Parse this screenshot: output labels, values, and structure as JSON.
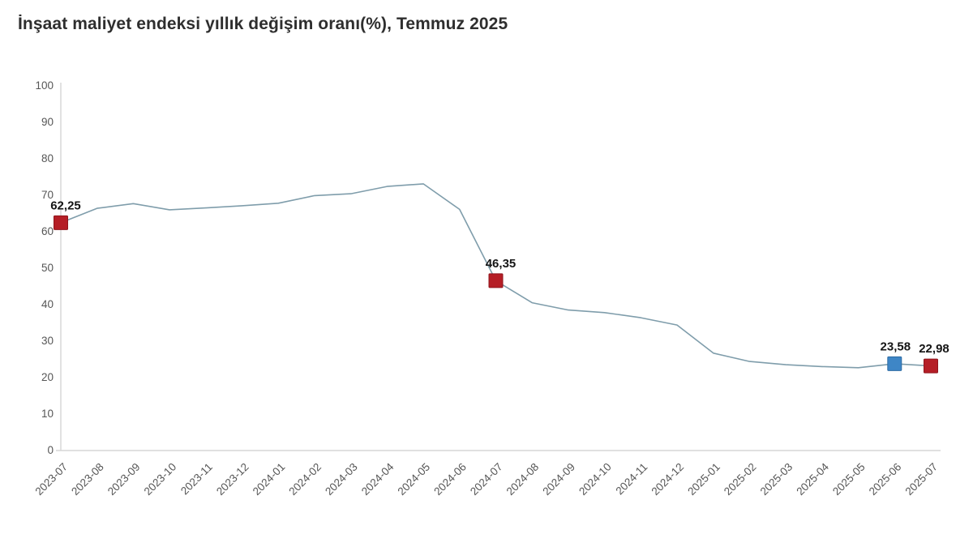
{
  "title": "İnşaat maliyet endeksi yıllık değişim oranı(%), Temmuz 2025",
  "colors": {
    "line": "#7f9dab",
    "marker_red": "#b51e26",
    "marker_red_border": "#8f151c",
    "marker_blue": "#3e86c6",
    "marker_blue_border": "#2d6ba3",
    "axis_line": "#d6d6d6",
    "tick_text": "#565656",
    "title_text": "#2e2e2e",
    "point_label_text": "#151515",
    "background": "#ffffff"
  },
  "chart_data": {
    "type": "line",
    "title": "İnşaat maliyet endeksi yıllık değişim oranı(%), Temmuz 2025",
    "xlabel": "",
    "ylabel": "",
    "ylim": [
      0,
      100
    ],
    "ytick_step": 10,
    "grid": false,
    "legend": false,
    "decimal_separator": ",",
    "x": [
      "2023-07",
      "2023-08",
      "2023-09",
      "2023-10",
      "2023-11",
      "2023-12",
      "2024-01",
      "2024-02",
      "2024-03",
      "2024-04",
      "2024-05",
      "2024-06",
      "2024-07",
      "2024-08",
      "2024-09",
      "2024-10",
      "2024-11",
      "2024-12",
      "2025-01",
      "2025-02",
      "2025-03",
      "2025-04",
      "2025-05",
      "2025-06",
      "2025-07"
    ],
    "values": [
      62.25,
      66.2,
      67.5,
      65.8,
      66.3,
      66.9,
      67.6,
      69.7,
      70.2,
      72.2,
      72.9,
      65.9,
      46.35,
      40.3,
      38.3,
      37.6,
      36.2,
      34.2,
      26.5,
      24.2,
      23.3,
      22.8,
      22.5,
      23.58,
      22.98
    ],
    "annotated_points": [
      {
        "category": "2023-07",
        "value": 62.25,
        "label": "62,25",
        "marker": "red"
      },
      {
        "category": "2024-07",
        "value": 46.35,
        "label": "46,35",
        "marker": "red"
      },
      {
        "category": "2025-06",
        "value": 23.58,
        "label": "23,58",
        "marker": "blue"
      },
      {
        "category": "2025-07",
        "value": 22.98,
        "label": "22,98",
        "marker": "red"
      }
    ]
  }
}
